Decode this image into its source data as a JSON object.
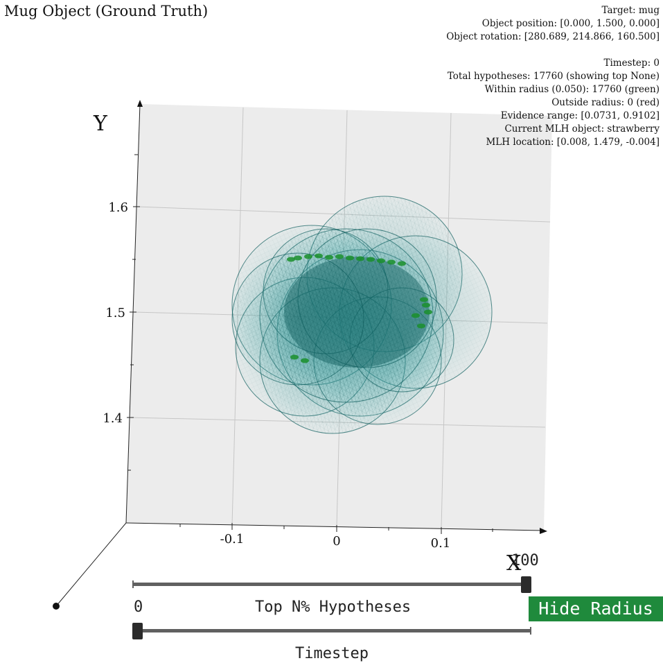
{
  "plot": {
    "title": "Mug Object (Ground Truth)",
    "axis_x_label": "X",
    "axis_y_label": "Y",
    "y_ticks": [
      "1.6",
      "1.5",
      "1.4"
    ],
    "x_ticks": [
      "-0.1",
      "0",
      "0.1"
    ],
    "colors": {
      "pane": "#ececec",
      "sphere_mesh": "#0f5e5e",
      "hypothesis_points": "#1a8f2c",
      "grid": "#c8c8c8"
    }
  },
  "info_panel": {
    "target": "Target: mug",
    "object_position": "Object position: [0.000, 1.500, 0.000]",
    "object_rotation": "Object rotation: [280.689, 214.866, 160.500]",
    "timestep": "Timestep: 0",
    "total_hypotheses": "Total hypotheses: 17760 (showing top None)",
    "within_radius": "Within radius (0.050): 17760 (green)",
    "outside_radius": "Outside radius: 0 (red)",
    "evidence_range": "Evidence range: [0.0731, 0.9102]",
    "current_mlh_object": "Current MLH object: strawberry",
    "mlh_location": "MLH location: [0.008, 1.479, -0.004]"
  },
  "top_n_slider": {
    "label": "Top N% Hypotheses",
    "min_label": "0",
    "max_label": "100",
    "value_fraction": 1.0
  },
  "timestep_slider": {
    "label": "Timestep",
    "value_fraction": 0.0
  },
  "radius_button": {
    "label": "Hide Radius"
  }
}
